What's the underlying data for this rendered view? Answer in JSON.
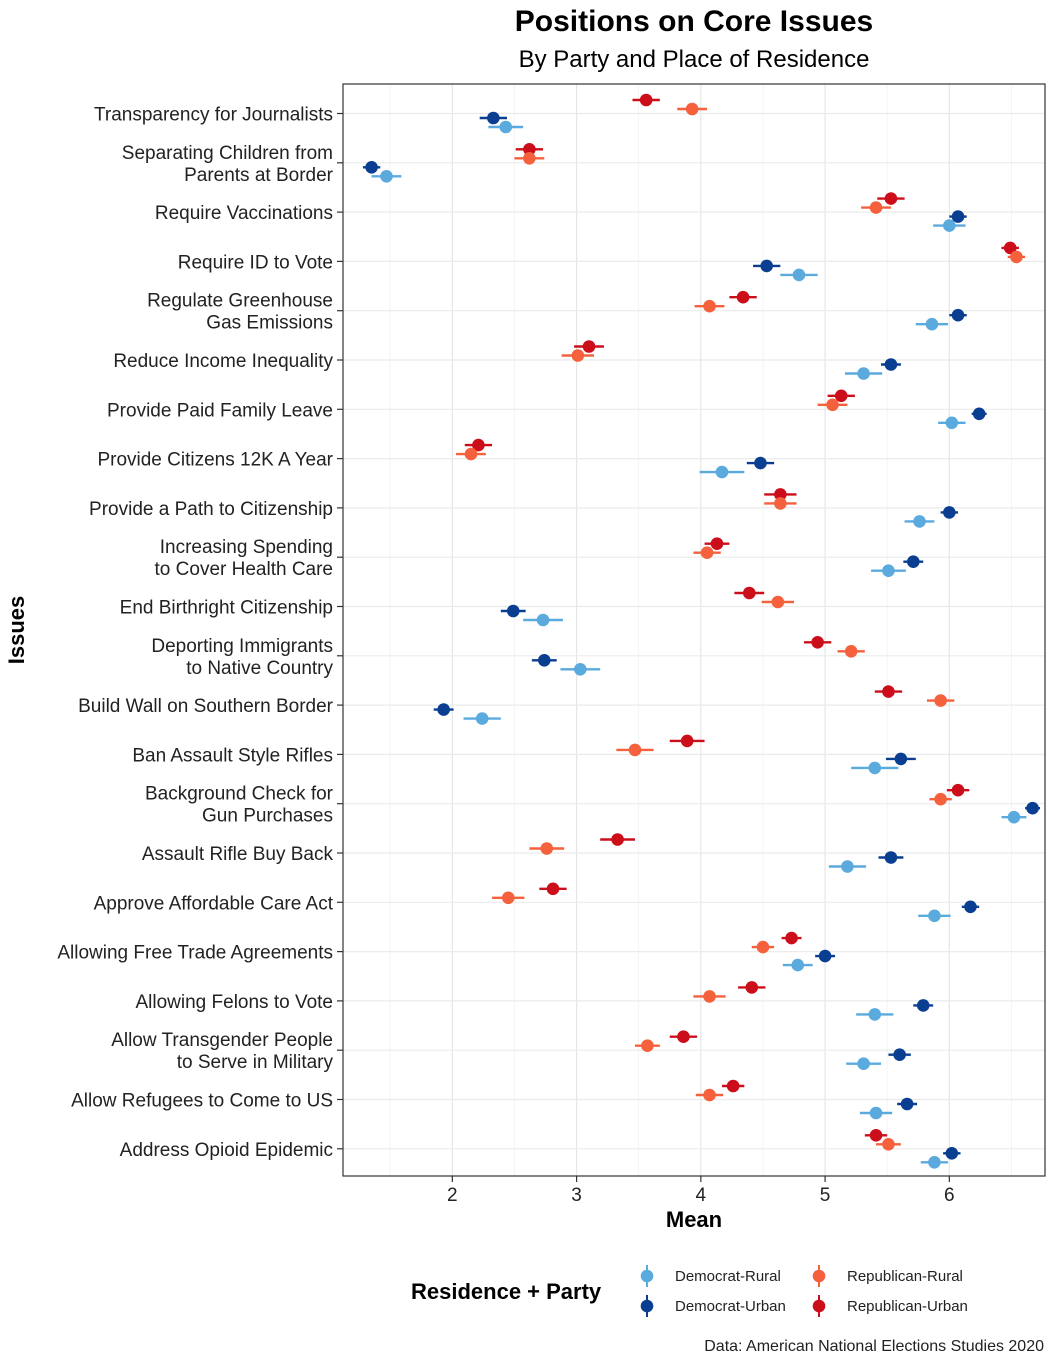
{
  "chart_data": {
    "type": "scatter",
    "title": "Positions on Core Issues",
    "subtitle": "By Party and Place of Residence",
    "xlabel": "Mean",
    "ylabel": "Issues",
    "xlim": [
      1.12,
      6.77
    ],
    "x_ticks": [
      2,
      3,
      4,
      5,
      6
    ],
    "grid": true,
    "legend": {
      "title": "Residence + Party",
      "position": "bottom"
    },
    "caption": "Data: American National Elections Studies 2020",
    "categories": [
      "Transparency for Journalists",
      "Separating Children from\nParents at Border",
      "Require Vaccinations",
      "Require ID to Vote",
      "Regulate Greenhouse\nGas Emissions",
      "Reduce Income Inequality",
      "Provide Paid Family Leave",
      "Provide Citizens 12K A Year",
      "Provide a Path to Citizenship",
      "Increasing Spending\nto Cover Health Care",
      "End Birthright Citizenship",
      "Deporting Immigrants\nto Native Country",
      "Build Wall on Southern Border",
      "Ban Assault Style Rifles",
      "Background Check for\nGun Purchases",
      "Assault Rifle Buy Back",
      "Approve Affordable Care Act",
      "Allowing Free Trade Agreements",
      "Allowing Felons to Vote",
      "Allow Transgender People\nto Serve in Military",
      "Allow Refugees to Come to US",
      "Address Opioid Epidemic"
    ],
    "series": [
      {
        "name": "Republican-Urban",
        "color": "#cc0e1b",
        "values": [
          3.56,
          2.62,
          5.53,
          6.49,
          4.34,
          3.1,
          5.13,
          2.21,
          4.64,
          4.13,
          4.39,
          4.94,
          5.51,
          3.89,
          6.07,
          3.33,
          2.81,
          4.73,
          4.41,
          3.86,
          4.26,
          5.41
        ],
        "ci": [
          0.11,
          0.11,
          0.11,
          0.07,
          0.11,
          0.12,
          0.11,
          0.11,
          0.13,
          0.1,
          0.12,
          0.11,
          0.11,
          0.14,
          0.09,
          0.14,
          0.11,
          0.08,
          0.11,
          0.11,
          0.09,
          0.09
        ]
      },
      {
        "name": "Republican-Rural",
        "color": "#f5603d",
        "values": [
          3.93,
          2.62,
          5.41,
          6.54,
          4.07,
          3.01,
          5.06,
          2.15,
          4.64,
          4.05,
          4.62,
          5.21,
          5.93,
          3.47,
          5.93,
          2.76,
          2.45,
          4.5,
          4.07,
          3.57,
          4.07,
          5.51
        ],
        "ci": [
          0.12,
          0.12,
          0.12,
          0.07,
          0.12,
          0.13,
          0.12,
          0.12,
          0.13,
          0.11,
          0.13,
          0.11,
          0.11,
          0.15,
          0.09,
          0.14,
          0.13,
          0.09,
          0.13,
          0.1,
          0.11,
          0.1
        ]
      },
      {
        "name": "Democrat-Urban",
        "color": "#0a3e91",
        "values": [
          2.33,
          1.35,
          6.07,
          4.53,
          6.07,
          5.53,
          6.24,
          4.48,
          6.0,
          5.71,
          2.49,
          2.74,
          1.93,
          5.61,
          6.67,
          5.53,
          6.17,
          5.0,
          5.79,
          5.6,
          5.66,
          6.02
        ],
        "ci": [
          0.11,
          0.07,
          0.07,
          0.11,
          0.07,
          0.08,
          0.06,
          0.11,
          0.07,
          0.08,
          0.1,
          0.1,
          0.08,
          0.12,
          0.06,
          0.1,
          0.07,
          0.08,
          0.08,
          0.09,
          0.08,
          0.07
        ]
      },
      {
        "name": "Democrat-Rural",
        "color": "#5aaade",
        "values": [
          2.43,
          1.47,
          6.0,
          4.79,
          5.86,
          5.31,
          6.02,
          4.17,
          5.76,
          5.51,
          2.73,
          3.03,
          2.24,
          5.4,
          6.52,
          5.18,
          5.88,
          4.78,
          5.4,
          5.31,
          5.41,
          5.88
        ],
        "ci": [
          0.14,
          0.12,
          0.13,
          0.15,
          0.13,
          0.15,
          0.11,
          0.18,
          0.12,
          0.14,
          0.16,
          0.16,
          0.15,
          0.19,
          0.1,
          0.15,
          0.13,
          0.12,
          0.15,
          0.14,
          0.13,
          0.11
        ]
      }
    ]
  }
}
